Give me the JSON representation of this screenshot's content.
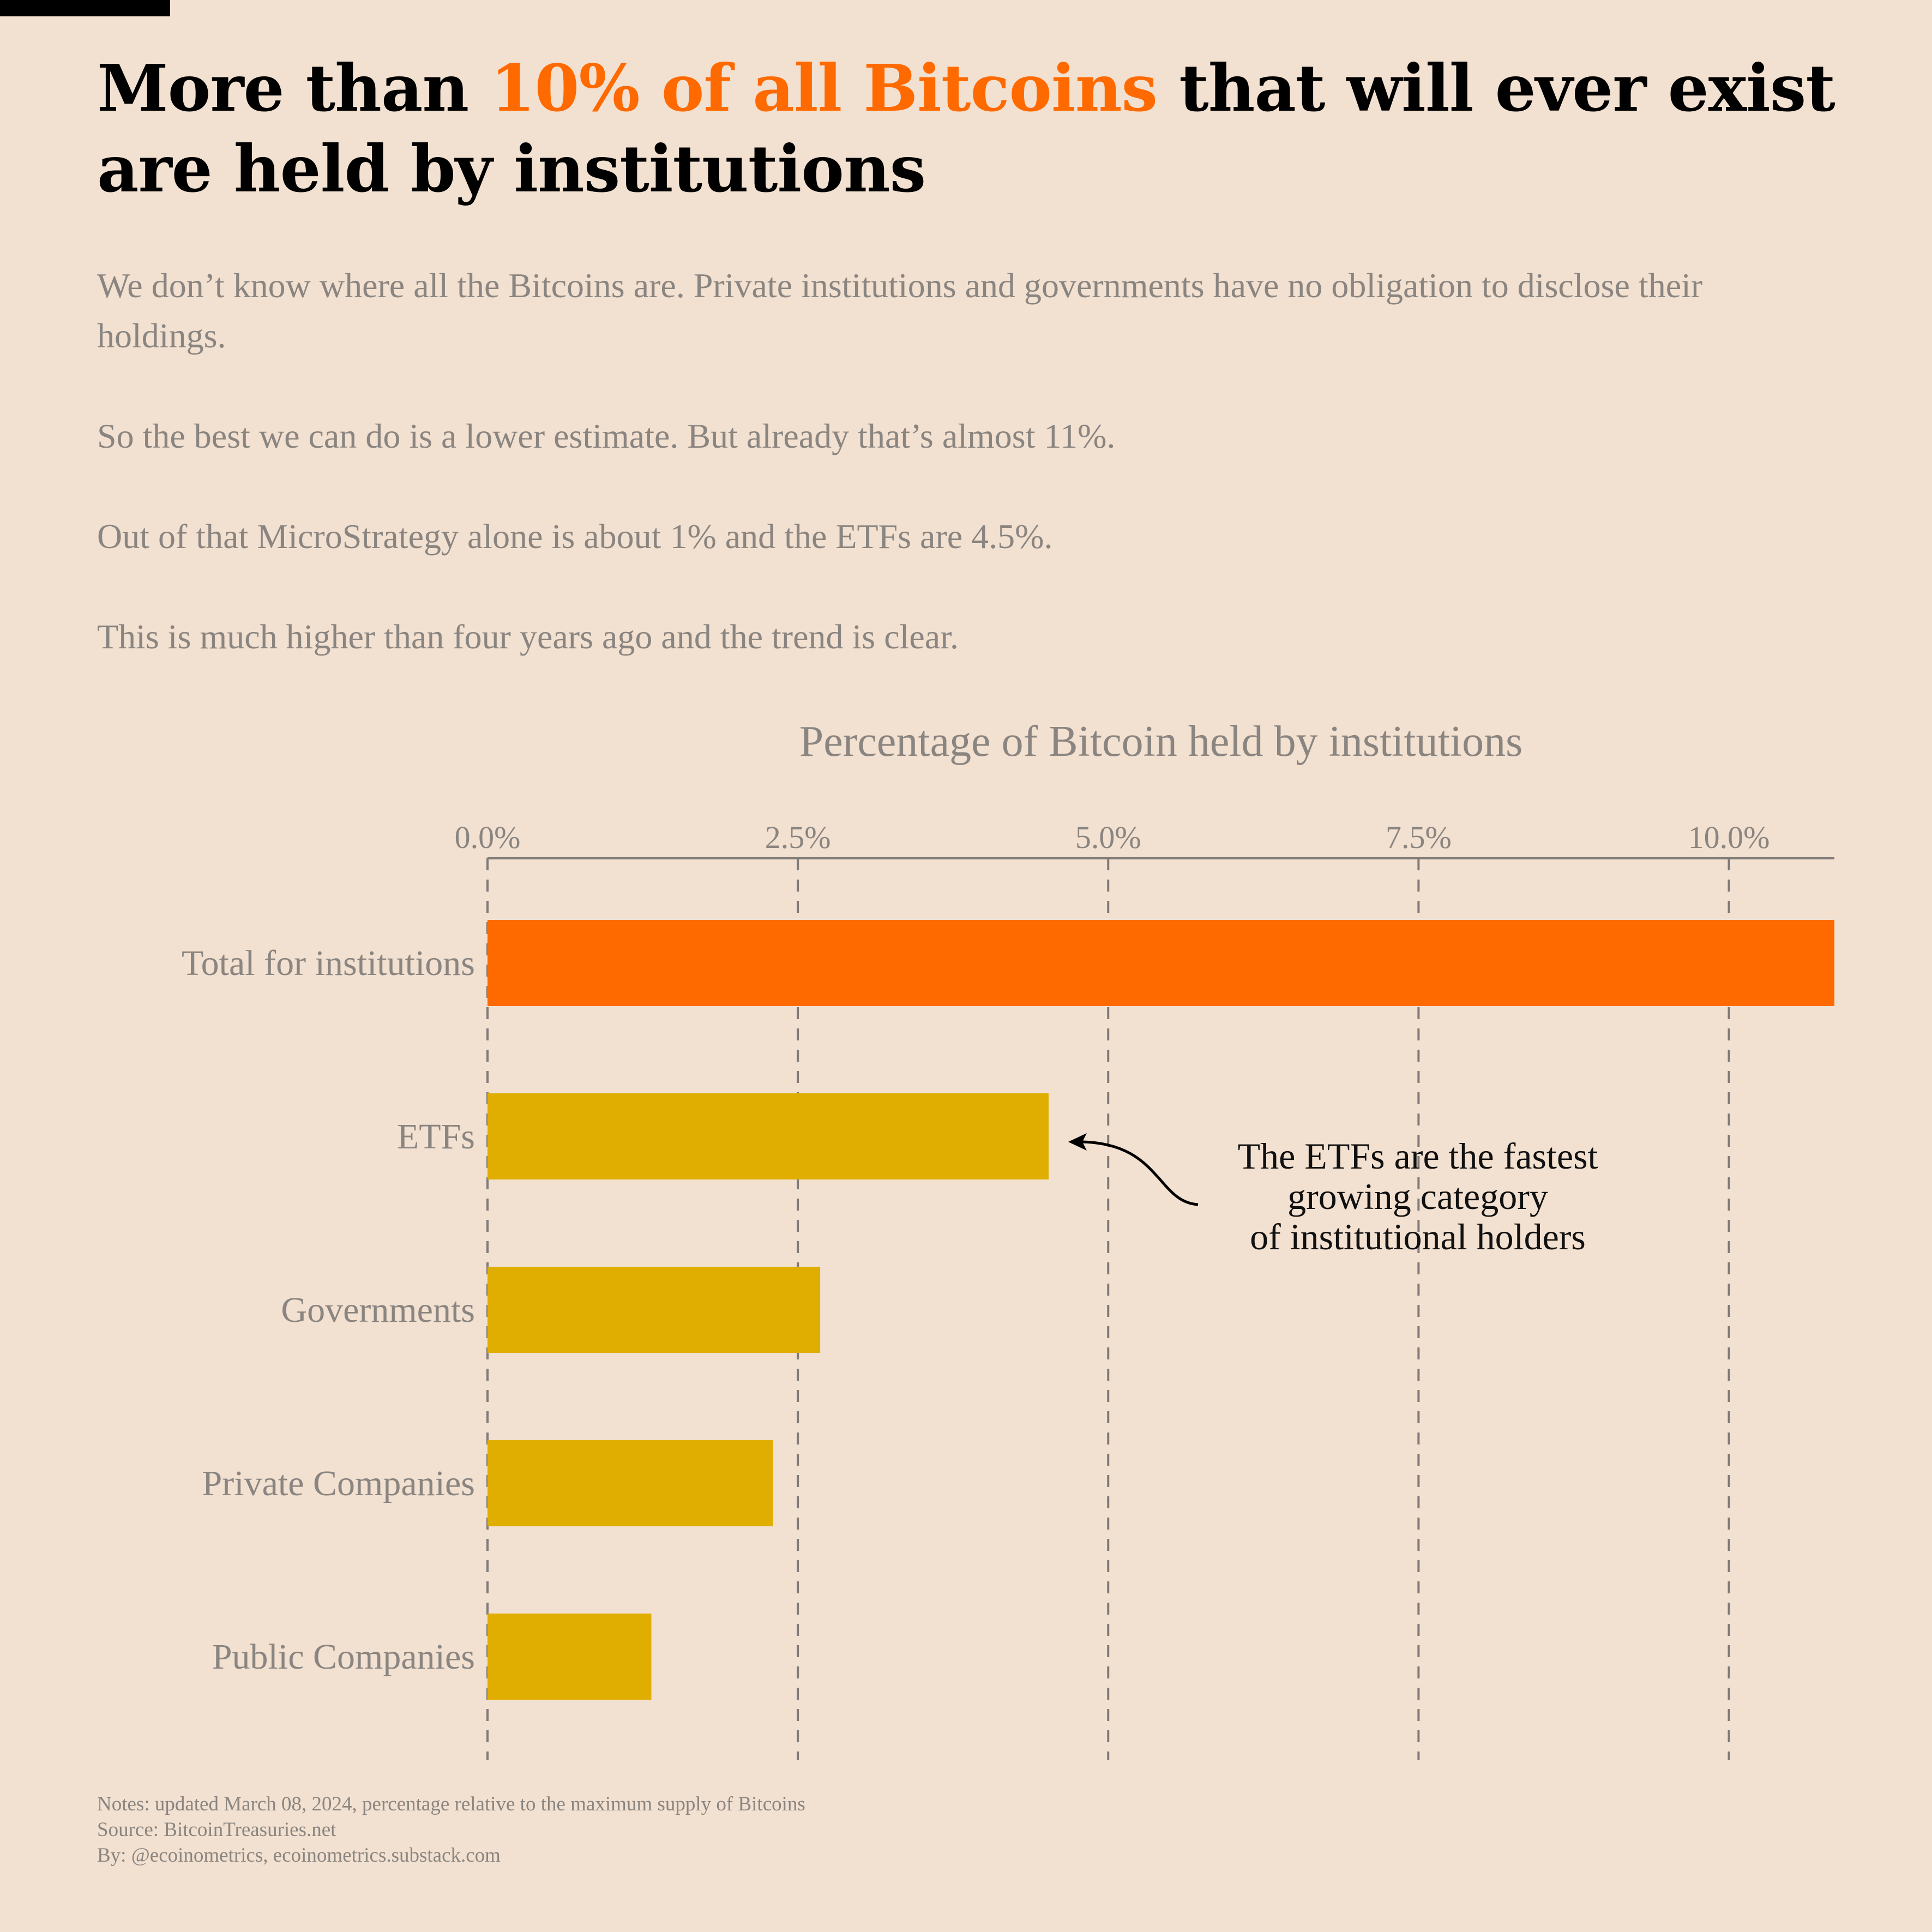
{
  "header": {
    "title_pre": "More than ",
    "title_highlight": "10% of all Bitcoins",
    "title_post": " that will ever exist are held by institutions"
  },
  "intro": {
    "paragraph_1": "We don’t know where all the Bitcoins are. Private institutions and governments have no obligation to disclose their holdings.",
    "paragraph_2": "So the best we can do is a lower estimate. But already that’s almost 11%.",
    "paragraph_3": "Out of that MicroStrategy alone is about 1% and the ETFs are 4.5%.",
    "paragraph_4": "This is much higher than four years ago and the trend is clear."
  },
  "colors": {
    "background": "#f2e0d0",
    "highlight": "#ff6a00",
    "bar": "#e0ae00",
    "text_muted": "#8a8580",
    "grid": "#807b78"
  },
  "chart_data": {
    "type": "bar",
    "orientation": "horizontal",
    "title": "Percentage of Bitcoin held by institutions",
    "categories": [
      "Total for institutions",
      "ETFs",
      "Governments",
      "Private Companies",
      "Public Companies"
    ],
    "values": [
      10.85,
      4.52,
      2.68,
      2.3,
      1.32
    ],
    "bar_colors": [
      "#ff6a00",
      "#e0ae00",
      "#e0ae00",
      "#e0ae00",
      "#e0ae00"
    ],
    "xlim": [
      0,
      10.85
    ],
    "xticks": [
      0,
      2.5,
      5.0,
      7.5,
      10.0
    ],
    "xtick_labels": [
      "0.0%",
      "2.5%",
      "5.0%",
      "7.5%",
      "10.0%"
    ],
    "axis_position": "top",
    "grid": "vertical dashed",
    "annotation": {
      "lines": [
        "The ETFs are the fastest",
        "growing category",
        "of institutional holders"
      ],
      "target_category": "ETFs"
    }
  },
  "footer": {
    "notes": "Notes: updated March 08, 2024, percentage relative to the maximum supply of Bitcoins",
    "source": "Source: BitcoinTreasuries.net",
    "by": "By: @ecoinometrics, ecoinometrics.substack.com"
  }
}
